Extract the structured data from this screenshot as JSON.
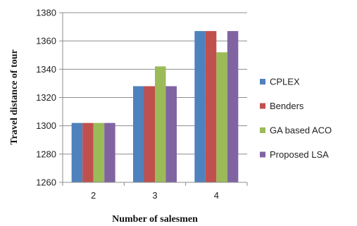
{
  "chart_data": {
    "type": "bar",
    "title": "",
    "xlabel": "Number of salesmen",
    "ylabel": "Travel distance of tour",
    "categories": [
      "2",
      "3",
      "4"
    ],
    "ylim": [
      1260,
      1380
    ],
    "yticks": [
      1260,
      1280,
      1300,
      1320,
      1340,
      1360,
      1380
    ],
    "grid": true,
    "legend_position": "right",
    "series": [
      {
        "name": "CPLEX",
        "color": "#4f81bd",
        "values": [
          1302,
          1328,
          1367
        ]
      },
      {
        "name": "Benders",
        "color": "#c0504d",
        "values": [
          1302,
          1328,
          1367
        ]
      },
      {
        "name": "GA based ACO",
        "color": "#9bbb59",
        "values": [
          1302,
          1342,
          1352
        ]
      },
      {
        "name": "Proposed LSA",
        "color": "#8064a2",
        "values": [
          1302,
          1328,
          1367
        ]
      }
    ]
  }
}
